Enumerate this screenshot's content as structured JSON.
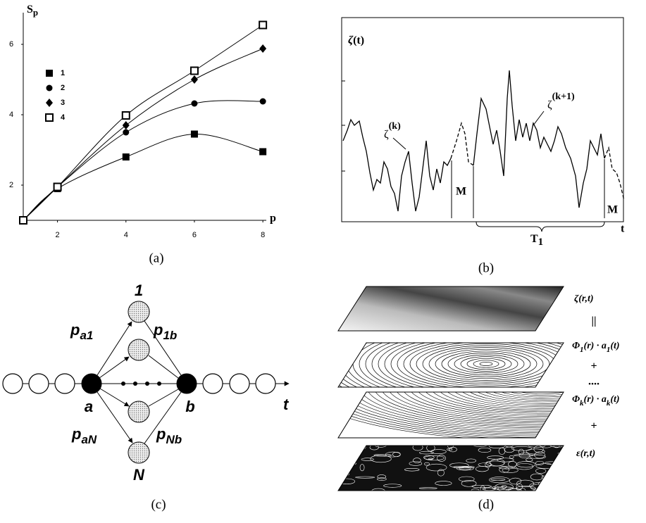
{
  "chart_data": {
    "type": "line",
    "y_label": [
      "S",
      "p"
    ],
    "x_label": "p",
    "x": [
      1,
      2,
      4,
      6,
      8
    ],
    "xlim": [
      1,
      8.1
    ],
    "ylim": [
      1,
      6.86
    ],
    "xticks": [
      2,
      4,
      6,
      8
    ],
    "yticks": [
      2,
      4,
      6
    ],
    "grid": false,
    "legend": "upper left",
    "series": [
      {
        "name": "1",
        "color": "#000000",
        "marker": "square-filled",
        "values": [
          1,
          1.9,
          2.8,
          3.45,
          2.95
        ]
      },
      {
        "name": "2",
        "color": "#000000",
        "marker": "circle-filled",
        "values": [
          1,
          1.95,
          3.5,
          4.32,
          4.38
        ]
      },
      {
        "name": "3",
        "color": "#000000",
        "marker": "diamond-filled",
        "values": [
          1,
          1.95,
          3.7,
          5.0,
          5.88
        ]
      },
      {
        "name": "4",
        "color": "#000000",
        "marker": "square-open",
        "values": [
          1,
          1.95,
          3.98,
          5.25,
          6.55
        ]
      }
    ]
  },
  "panel_b": {
    "y_label": [
      "ζ",
      "(t)"
    ],
    "curve_labels": [
      [
        "ζ",
        "(k)"
      ],
      [
        "ζ",
        "(k+1)"
      ]
    ],
    "markers": [
      "M",
      "M"
    ],
    "interval": [
      "T",
      "1"
    ],
    "x_label": "t"
  },
  "panel_c": {
    "top": "1",
    "bottom": "N",
    "a": "a",
    "b": "b",
    "axis": "t",
    "edges": [
      [
        "p",
        "a1"
      ],
      [
        "p",
        "1b"
      ],
      [
        "p",
        "aN"
      ],
      [
        "p",
        "Nb"
      ]
    ]
  },
  "panel_d": {
    "layers": [
      [
        "ζ",
        "(r,t)"
      ],
      [
        "Φ",
        "1",
        "(r) · a",
        "1",
        "(t)"
      ],
      [
        "Φ",
        "k",
        "(r) · a",
        "k",
        "(t)"
      ],
      [
        "ε",
        "(r,t)"
      ]
    ],
    "operators": [
      "||",
      "+",
      "....",
      "+"
    ]
  },
  "captions": [
    "(a)",
    "(b)",
    "(c)",
    "(d)"
  ]
}
